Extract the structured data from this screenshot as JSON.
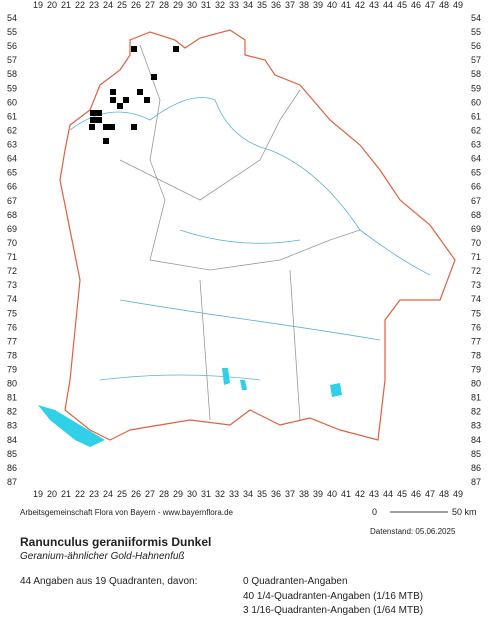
{
  "map": {
    "x_labels": [
      19,
      20,
      21,
      22,
      23,
      24,
      25,
      26,
      27,
      28,
      29,
      30,
      31,
      32,
      33,
      34,
      35,
      36,
      37,
      38,
      39,
      40,
      41,
      42,
      43,
      44,
      45,
      46,
      47,
      48,
      49
    ],
    "y_labels": [
      54,
      55,
      56,
      57,
      58,
      59,
      60,
      61,
      62,
      63,
      64,
      65,
      66,
      67,
      68,
      69,
      70,
      71,
      72,
      73,
      74,
      75,
      76,
      77,
      78,
      79,
      80,
      81,
      82,
      83,
      84,
      85,
      86,
      87
    ],
    "scale_start": 0,
    "scale_end": "50 km"
  },
  "footer": {
    "credit": "Arbeitsgemeinschaft Flora von Bayern - www.bayernflora.de",
    "date": "Datenstand: 05.06.2025",
    "title": "Ranunculus geraniiformis Dunkel",
    "subtitle": "Geranium-ähnlicher Gold-Hahnenfuß",
    "summary": "44 Angaben aus 19 Quadranten, davon:",
    "details": [
      "0 Quadranten-Angaben",
      "40 1/4-Quadranten-Angaben (1/16 MTB)",
      "3 1/16-Quadranten-Angaben (1/64 MTB)"
    ]
  }
}
